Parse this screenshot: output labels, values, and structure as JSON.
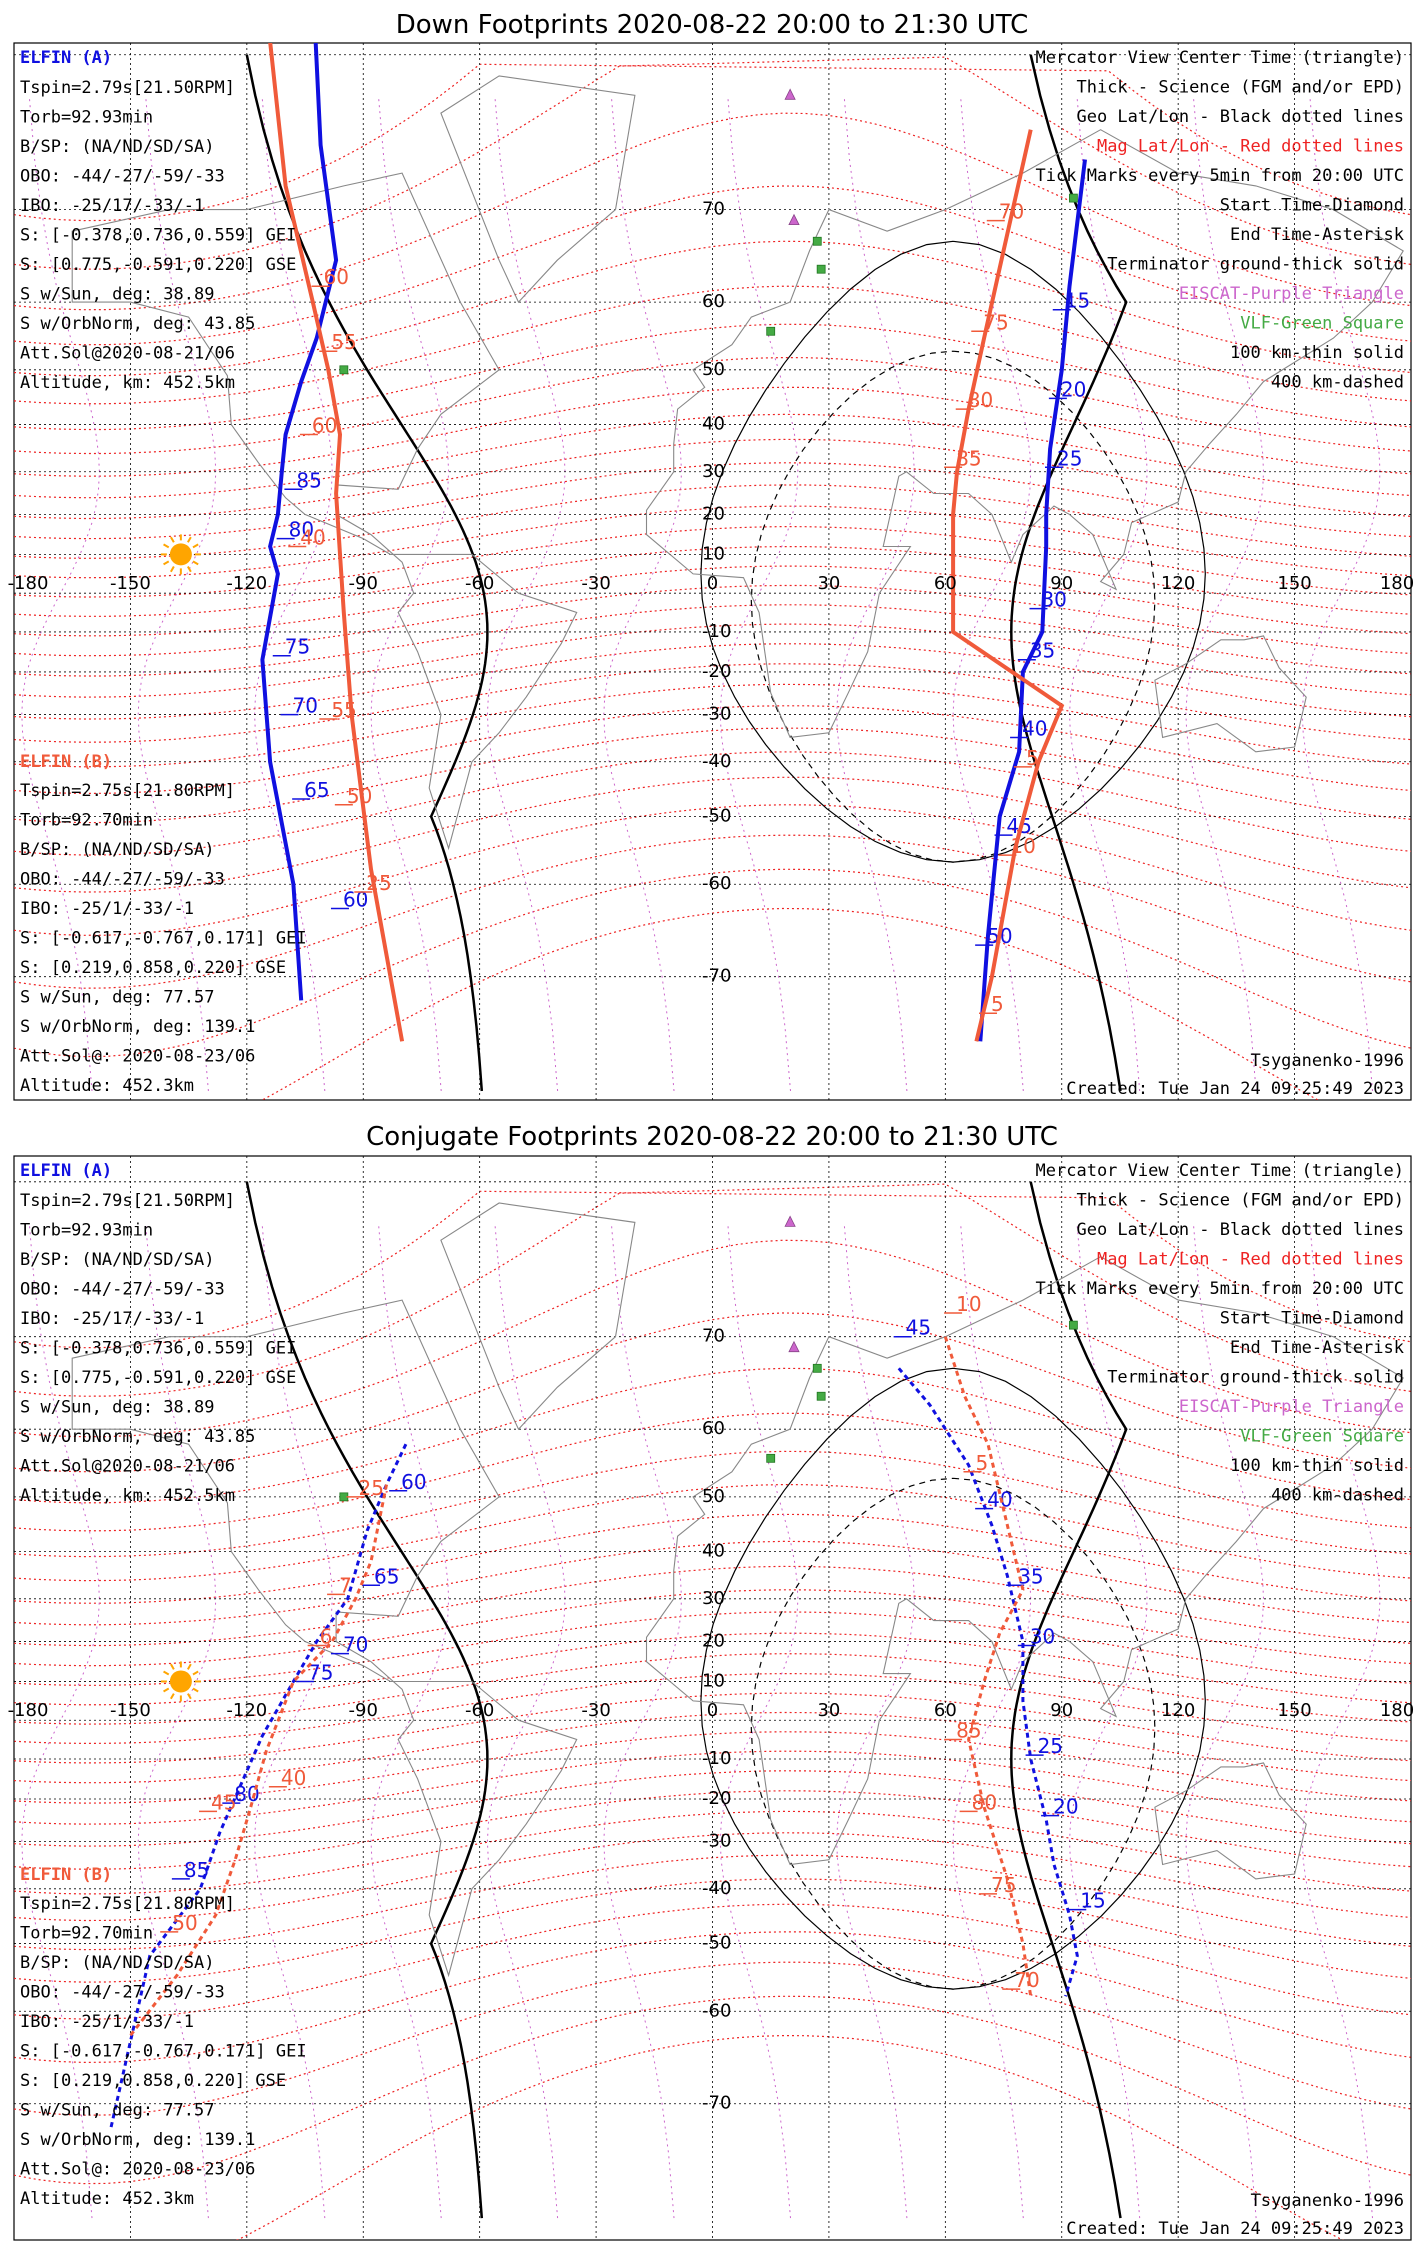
{
  "colors": {
    "elfin_a": "#1010e0",
    "elfin_b": "#f05a3a",
    "mag_grid": "#ee2222",
    "geo_grid": "#000000",
    "eiscat": "#cc66cc",
    "vlf": "#44aa44",
    "sun": "#ffa500"
  },
  "chart_data": [
    {
      "type": "map",
      "title": "Down Footprints 2020-08-22 20:00 to 21:30 UTC",
      "x_ticks": [
        -180,
        -150,
        -120,
        -90,
        -60,
        -30,
        0,
        30,
        60,
        90,
        120,
        150,
        180
      ],
      "y_ticks": [
        -70,
        -60,
        -50,
        -40,
        -30,
        -20,
        -10,
        0,
        10,
        20,
        30,
        40,
        50,
        60,
        70
      ],
      "legend_right": [
        "Mercator View Center Time (triangle)",
        "Thick - Science (FGM and/or EPD)",
        "Geo Lat/Lon - Black dotted lines",
        "Mag Lat/Lon - Red dotted lines",
        "Tick Marks every 5min from 20:00 UTC",
        "Start Time-Diamond",
        "End Time-Asterisk",
        "Terminator ground-thick solid",
        "EISCAT-Purple Triangle",
        "VLF-Green Square",
        "100 km-thin solid",
        "400 km-dashed"
      ],
      "elfin_a": {
        "title": "ELFIN (A)",
        "lines": [
          "Tspin=2.79s[21.50RPM]",
          "Torb=92.93min",
          "B/SP: (NA/ND/SD/SA)",
          "OBO: -44/-27/-59/-33",
          "IBO: -25/17/-33/-1",
          "S: [-0.378,0.736,0.559] GEI",
          "S: [0.775,-0.591,0.220] GSE",
          "S w/Sun, deg: 38.89",
          "S w/OrbNorm, deg: 43.85",
          "Att.Sol@2020-08-21/06",
          "Altitude, km: 452.5km"
        ]
      },
      "elfin_b": {
        "title": "ELFIN (B)",
        "lines": [
          "Tspin=2.75s[21.80RPM]",
          "Torb=92.70min",
          "B/SP: (NA/ND/SD/SA)",
          "OBO: -44/-27/-59/-33",
          "IBO: -25/1/-33/-1",
          "S: [-0.617,-0.767,0.171] GEI",
          "S: [0.219,0.858,0.220] GSE",
          "S w/Sun, deg: 77.57",
          "S w/OrbNorm, deg: 139.1",
          "Att.Sol@: 2020-08-23/06",
          "Altitude: 452.3km"
        ]
      },
      "footer_right": [
        "Tsyganenko-1996",
        "Created: Tue Jan 24 09:25:49 2023"
      ],
      "series": [
        {
          "sat": "A",
          "points": [
            [
              -104,
              85
            ],
            [
              -101,
              75
            ],
            [
              -97,
              65
            ],
            [
              -102,
              55
            ],
            [
              -106,
              48
            ],
            [
              -110,
              38
            ],
            [
              -111,
              30
            ],
            [
              -112,
              20
            ],
            [
              -114,
              12
            ],
            [
              -112,
              5
            ],
            [
              -116,
              -17
            ],
            [
              -114,
              -40
            ],
            [
              -108,
              -60
            ],
            [
              -106,
              -72
            ]
          ],
          "ticks": [
            {
              "lon": -108,
              "lat": 26,
              "label": "85"
            },
            {
              "lon": -110,
              "lat": 14,
              "label": "80"
            },
            {
              "lon": -111,
              "lat": -16,
              "label": "75"
            },
            {
              "lon": -109,
              "lat": -30,
              "label": "70"
            },
            {
              "lon": -106,
              "lat": -47,
              "label": "65"
            },
            {
              "lon": -96,
              "lat": -63,
              "label": "60"
            }
          ]
        },
        {
          "sat": "A",
          "points": [
            [
              96,
              74
            ],
            [
              92,
              62
            ],
            [
              90,
              50
            ],
            [
              87,
              35
            ],
            [
              86,
              20
            ],
            [
              86,
              12
            ],
            [
              85,
              -10
            ],
            [
              80,
              -20
            ],
            [
              79,
              -38
            ],
            [
              74,
              -50
            ],
            [
              71,
              -66
            ],
            [
              69,
              -75
            ]
          ],
          "ticks": [
            {
              "lon": 90,
              "lat": 59,
              "label": "15"
            },
            {
              "lon": 89,
              "lat": 45,
              "label": "20"
            },
            {
              "lon": 88,
              "lat": 31,
              "label": "25"
            },
            {
              "lon": 84,
              "lat": -4,
              "label": "30"
            },
            {
              "lon": 81,
              "lat": -17,
              "label": "35"
            },
            {
              "lon": 79,
              "lat": -35,
              "label": "40"
            },
            {
              "lon": 75,
              "lat": -53,
              "label": "45"
            },
            {
              "lon": 70,
              "lat": -67,
              "label": "50"
            }
          ]
        },
        {
          "sat": "B",
          "points": [
            [
              -115,
              82
            ],
            [
              -110,
              72
            ],
            [
              -103,
              60
            ],
            [
              -99,
              50
            ],
            [
              -96,
              38
            ],
            [
              -97,
              25
            ],
            [
              -96,
              10
            ],
            [
              -95,
              -5
            ],
            [
              -93,
              -30
            ],
            [
              -88,
              -58
            ],
            [
              -80,
              -75
            ]
          ],
          "ticks": [
            {
              "lon": -101,
              "lat": 62,
              "label": "60"
            },
            {
              "lon": -99,
              "lat": 53,
              "label": "55"
            },
            {
              "lon": -104,
              "lat": 38,
              "label": "60"
            },
            {
              "lon": -107,
              "lat": 12,
              "label": "40"
            },
            {
              "lon": -99,
              "lat": -31,
              "label": "55"
            },
            {
              "lon": -95,
              "lat": -48,
              "label": "50"
            },
            {
              "lon": -90,
              "lat": -61,
              "label": "25"
            }
          ]
        },
        {
          "sat": "B",
          "points": [
            [
              82,
              76
            ],
            [
              75,
              66
            ],
            [
              70,
              55
            ],
            [
              66,
              43
            ],
            [
              63,
              30
            ],
            [
              62,
              20
            ],
            [
              62,
              10
            ],
            [
              62,
              -10
            ],
            [
              90,
              -28
            ],
            [
              84,
              -40
            ],
            [
              78,
              -55
            ],
            [
              72,
              -70
            ],
            [
              68,
              -75
            ]
          ],
          "ticks": [
            {
              "lon": 73,
              "lat": 69,
              "label": "70"
            },
            {
              "lon": 69,
              "lat": 56,
              "label": "75"
            },
            {
              "lon": 65,
              "lat": 43,
              "label": "80"
            },
            {
              "lon": 62,
              "lat": 31,
              "label": "85"
            },
            {
              "lon": 80,
              "lat": -41,
              "label": "5"
            },
            {
              "lon": 76,
              "lat": -56,
              "label": "10"
            },
            {
              "lon": 71,
              "lat": -73,
              "label": "5"
            }
          ]
        }
      ]
    },
    {
      "type": "map",
      "title": "Conjugate Footprints 2020-08-22 20:00 to 21:30 UTC",
      "x_ticks": [
        -180,
        -150,
        -120,
        -90,
        -60,
        -30,
        0,
        30,
        60,
        90,
        120,
        150,
        180
      ],
      "y_ticks": [
        -70,
        -60,
        -50,
        -40,
        -30,
        -20,
        -10,
        0,
        10,
        20,
        30,
        40,
        50,
        60,
        70
      ],
      "legend_right": [
        "Mercator View Center Time (triangle)",
        "Thick - Science (FGM and/or EPD)",
        "Geo Lat/Lon - Black dotted lines",
        "Mag Lat/Lon - Red dotted lines",
        "Tick Marks every 5min from 20:00 UTC",
        "Start Time-Diamond",
        "End Time-Asterisk",
        "Terminator ground-thick solid",
        "EISCAT-Purple Triangle",
        "VLF-Green Square",
        "100 km-thin solid",
        "400 km-dashed"
      ],
      "elfin_a": {
        "title": "ELFIN (A)",
        "lines": [
          "Tspin=2.79s[21.50RPM]",
          "Torb=92.93min",
          "B/SP: (NA/ND/SD/SA)",
          "OBO: -44/-27/-59/-33",
          "IBO: -25/17/-33/-1",
          "S: [-0.378,0.736,0.559] GEI",
          "S: [0.775,-0.591,0.220] GSE",
          "S w/Sun, deg: 38.89",
          "S w/OrbNorm, deg: 43.85",
          "Att.Sol@2020-08-21/06",
          "Altitude, km: 452.5km"
        ]
      },
      "elfin_b": {
        "title": "ELFIN (B)",
        "lines": [
          "Tspin=2.75s[21.80RPM]",
          "Torb=92.70min",
          "B/SP: (NA/ND/SD/SA)",
          "OBO: -44/-27/-59/-33",
          "IBO: -25/1/-33/-1",
          "S: [-0.617,-0.767,0.171] GEI",
          "S: [0.219,0.858,0.220] GSE",
          "S w/Sun, deg: 77.57",
          "S w/OrbNorm, deg: 139.1",
          "Att.Sol@: 2020-08-23/06",
          "Altitude: 452.3km"
        ]
      },
      "footer_right": [
        "Tsyganenko-1996",
        "Created: Tue Jan 24 09:25:49 2023"
      ],
      "series": [
        {
          "sat": "A",
          "points": [
            [
              -79,
              58
            ],
            [
              -84,
              52
            ],
            [
              -89,
              44
            ],
            [
              -94,
              30
            ],
            [
              -102,
              20
            ],
            [
              -108,
              10
            ],
            [
              -116,
              -4
            ],
            [
              -127,
              -28
            ],
            [
              -132,
              -40
            ],
            [
              -145,
              -52
            ],
            [
              -155,
              -72
            ]
          ],
          "ticks": [
            {
              "lon": -81,
              "lat": 51,
              "label": "60"
            },
            {
              "lon": -88,
              "lat": 33,
              "label": "65"
            },
            {
              "lon": -96,
              "lat": 17,
              "label": "70"
            },
            {
              "lon": -105,
              "lat": 10,
              "label": "75"
            },
            {
              "lon": -124,
              "lat": -21,
              "label": "80"
            },
            {
              "lon": -137,
              "lat": -38,
              "label": "85"
            }
          ]
        },
        {
          "sat": "A",
          "points": [
            [
              48,
              67
            ],
            [
              56,
              63
            ],
            [
              66,
              55
            ],
            [
              72,
              45
            ],
            [
              76,
              35
            ],
            [
              80,
              20
            ],
            [
              80,
              5
            ],
            [
              82,
              -10
            ],
            [
              86,
              -25
            ],
            [
              88,
              -35
            ],
            [
              92,
              -45
            ],
            [
              94,
              -52
            ],
            [
              91,
              -58
            ]
          ],
          "ticks": [
            {
              "lon": 49,
              "lat": 70,
              "label": "45"
            },
            {
              "lon": 70,
              "lat": 48,
              "label": "40"
            },
            {
              "lon": 78,
              "lat": 33,
              "label": "35"
            },
            {
              "lon": 81,
              "lat": 19,
              "label": "30"
            },
            {
              "lon": 83,
              "lat": -9,
              "label": "25"
            },
            {
              "lon": 87,
              "lat": -24,
              "label": "20"
            },
            {
              "lon": 94,
              "lat": -44,
              "label": "15"
            }
          ]
        },
        {
          "sat": "B",
          "points": [
            [
              -84,
              52
            ],
            [
              -88,
              38
            ],
            [
              -92,
              30
            ],
            [
              -98,
              20
            ],
            [
              -108,
              10
            ],
            [
              -115,
              -8
            ],
            [
              -119,
              -22
            ],
            [
              -123,
              -34
            ],
            [
              -128,
              -45
            ],
            [
              -138,
              -55
            ],
            [
              -150,
              -63
            ]
          ],
          "ticks": [
            {
              "lon": -92,
              "lat": 50,
              "label": "25"
            },
            {
              "lon": -97,
              "lat": 31,
              "label": "7"
            },
            {
              "lon": -102,
              "lat": 19,
              "label": "6"
            },
            {
              "lon": -112,
              "lat": -17,
              "label": "40"
            },
            {
              "lon": -130,
              "lat": -23,
              "label": "45"
            },
            {
              "lon": -140,
              "lat": -48,
              "label": "50"
            }
          ]
        },
        {
          "sat": "B",
          "points": [
            [
              60,
              70
            ],
            [
              65,
              64
            ],
            [
              71,
              58
            ],
            [
              76,
              45
            ],
            [
              80,
              32
            ],
            [
              74,
              22
            ],
            [
              70,
              10
            ],
            [
              66,
              -5
            ],
            [
              70,
              -22
            ],
            [
              76,
              -38
            ],
            [
              80,
              -50
            ],
            [
              82,
              -58
            ]
          ],
          "ticks": [
            {
              "lon": 62,
              "lat": 72,
              "label": "10"
            },
            {
              "lon": 67,
              "lat": 54,
              "label": "5"
            },
            {
              "lon": 62,
              "lat": -5,
              "label": "85"
            },
            {
              "lon": 66,
              "lat": -23,
              "label": "80"
            },
            {
              "lon": 71,
              "lat": -41,
              "label": "75"
            },
            {
              "lon": 77,
              "lat": -57,
              "label": "70"
            }
          ]
        }
      ]
    }
  ]
}
